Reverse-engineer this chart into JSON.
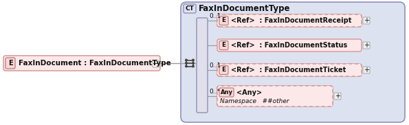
{
  "bg_color": "#ffffff",
  "panel_fill": "#dde2f0",
  "panel_border": "#9090bb",
  "element_fill": "#fce8e8",
  "element_border": "#d09090",
  "badge_fill": "#f8d8d8",
  "badge_border": "#c08080",
  "title": "FaxInDocumentType",
  "ct_label": "CT",
  "main_element_text": "FaxInDocument : FaxInDocumentType",
  "line_color": "#999999",
  "bar_fill": "#e0e0ec",
  "bar_border": "#9090b0",
  "plus_fill": "#eeeeee",
  "plus_border": "#aaaaaa",
  "rows": [
    {
      "label": "E",
      "text": "<Ref>  : FaxInDocumentReceipt",
      "cardinality": "0..1",
      "dashed": true,
      "has_ns": false
    },
    {
      "label": "E",
      "text": "<Ref>  : FaxInDocumentStatus",
      "cardinality": "",
      "dashed": false,
      "has_ns": false
    },
    {
      "label": "E",
      "text": "<Ref>  : FaxInDocumentTicket",
      "cardinality": "0..1",
      "dashed": true,
      "has_ns": false
    },
    {
      "label": "Any",
      "text": "<Any>",
      "cardinality": "0..*",
      "dashed": true,
      "has_ns": true,
      "namespace": "Namespace   ##other"
    }
  ]
}
